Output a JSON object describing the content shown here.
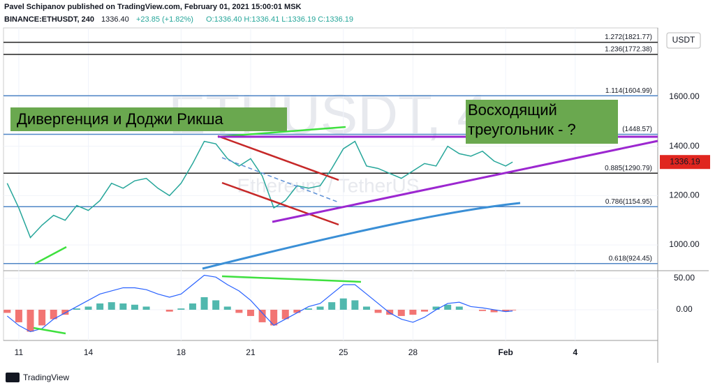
{
  "header": {
    "publisher": "Pavel  Schipanov published on TradingView.com, February 01, 2021 15:00:01 MSK",
    "symbol": "BINANCE:ETHUSDT, 240",
    "price": "1336.40",
    "change": "+23.85 (+1.82%)",
    "ohlc": "O:1336.40 H:1336.41 L:1336.19 C:1336.19"
  },
  "footer": "TradingView",
  "chart_data": [
    {
      "type": "line",
      "watermark": "ETHUSDT, 4",
      "watermark_sub": "Ethereum / TetherUS",
      "currency": "USDT",
      "annotations": [
        "Дивергенция и Доджи Рикша",
        "Восходящий треугольник - ?"
      ],
      "x": [
        10.5,
        11,
        11.5,
        12,
        12.5,
        13,
        13.5,
        14,
        14.5,
        15,
        15.5,
        16,
        16.5,
        17,
        17.5,
        18,
        18.5,
        19,
        19.5,
        20,
        20.5,
        21,
        21.5,
        22,
        22.5,
        23,
        23.5,
        24,
        24.5,
        25,
        25.5,
        26,
        26.5,
        27,
        27.5,
        28,
        28.5,
        29,
        29.5,
        30,
        30.5,
        31,
        31.5,
        32,
        32.3
      ],
      "values": [
        1250,
        1150,
        1030,
        1080,
        1120,
        1100,
        1160,
        1140,
        1180,
        1250,
        1230,
        1260,
        1270,
        1230,
        1200,
        1250,
        1330,
        1420,
        1410,
        1350,
        1320,
        1350,
        1280,
        1150,
        1180,
        1240,
        1230,
        1240,
        1310,
        1390,
        1420,
        1320,
        1310,
        1290,
        1270,
        1300,
        1330,
        1320,
        1400,
        1370,
        1360,
        1380,
        1340,
        1320,
        1336.19
      ],
      "color": "#26a69a",
      "last_color": "#e0261f",
      "xlim": [
        10.34,
        38.56
      ],
      "xticks": [
        11,
        14,
        18,
        21,
        25,
        28,
        {
          "value": 32,
          "label": "Feb"
        },
        {
          "value": 35,
          "label": "4"
        }
      ],
      "ylim": [
        904,
        1880
      ],
      "yticks": [
        {
          "value": 1000,
          "label": "1000.00"
        },
        {
          "value": 1200,
          "label": "1200.00"
        },
        {
          "value": 1400,
          "label": "1400.00"
        },
        {
          "value": 1600,
          "label": "1600.00"
        }
      ],
      "levels": [
        {
          "value": 1821.77,
          "label": "1.272(1821.77)",
          "color": "#222222"
        },
        {
          "value": 1772.38,
          "label": "1.236(1772.38)",
          "color": "#222222"
        },
        {
          "value": 1604.99,
          "label": "1.114(1604.99)",
          "color": "#4f86c6"
        },
        {
          "value": 1448.57,
          "label": "(1448.57)",
          "color": "#4f86c6"
        },
        {
          "value": 1290.79,
          "label": "0.885(1290.79)",
          "color": "#222222"
        },
        {
          "value": 1154.95,
          "label": "0.786(1154.95)",
          "color": "#4f86c6"
        },
        {
          "value": 924.45,
          "label": "0.618(924.45)",
          "color": "#4f86c6"
        }
      ]
    },
    {
      "type": "macd",
      "x": [
        10.5,
        11,
        11.5,
        12,
        12.5,
        13,
        13.5,
        14,
        14.5,
        15,
        15.5,
        16,
        16.5,
        17,
        17.5,
        18,
        18.5,
        19,
        19.5,
        20,
        20.5,
        21,
        21.5,
        22,
        22.5,
        23,
        23.5,
        24,
        24.5,
        25,
        25.5,
        26,
        26.5,
        27,
        27.5,
        28,
        28.5,
        29,
        29.5,
        30,
        30.5,
        31,
        31.5,
        32,
        32.3
      ],
      "values": [
        -5,
        -20,
        -35,
        -25,
        -15,
        -8,
        2,
        5,
        10,
        12,
        10,
        8,
        5,
        0,
        -3,
        2,
        10,
        20,
        15,
        5,
        -5,
        -10,
        -20,
        -25,
        -15,
        -5,
        2,
        5,
        12,
        18,
        15,
        5,
        -5,
        -8,
        -10,
        -8,
        -3,
        5,
        8,
        5,
        0,
        -2,
        -4,
        -3,
        -1
      ],
      "line_values": [
        -10,
        -25,
        -35,
        -30,
        -15,
        -5,
        5,
        15,
        25,
        30,
        35,
        35,
        32,
        25,
        20,
        25,
        40,
        55,
        52,
        40,
        30,
        15,
        -5,
        -25,
        -15,
        -5,
        5,
        10,
        25,
        40,
        40,
        25,
        10,
        -5,
        -15,
        -20,
        -12,
        0,
        10,
        12,
        5,
        3,
        0,
        -3,
        -2
      ],
      "pos_color": "#26a69a",
      "neg_color": "#ef5350",
      "line_color": "#2962ff",
      "ylim": [
        -49,
        60
      ],
      "yticks": [
        {
          "value": 50,
          "label": "50.00"
        },
        {
          "value": 0,
          "label": "0.00"
        }
      ]
    }
  ]
}
